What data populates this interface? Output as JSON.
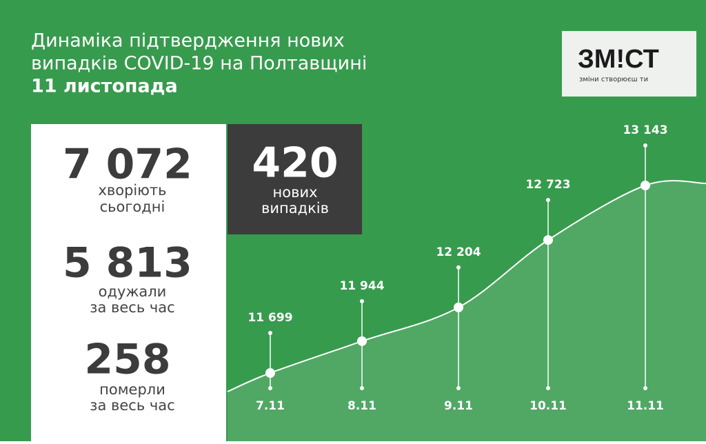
{
  "header": {
    "title_line1": "Динаміка підтвердження нових",
    "title_line2": "випадків COVID-19 на Полтавщині",
    "date": "11 листопада"
  },
  "logo": {
    "name": "ЗМ!СТ",
    "tagline": "зміни створюєш ти"
  },
  "stats": [
    {
      "number": "7 072",
      "label_line1": "хворіють",
      "label_line2": "сьогодні"
    },
    {
      "number": "5 813",
      "label_line1": "одужали",
      "label_line2": "за весь час"
    },
    {
      "number": "258",
      "label_line1": "померли",
      "label_line2": "за весь час"
    }
  ],
  "new_cases": {
    "number": "420",
    "label_line1": "нових",
    "label_line2": "випадків"
  },
  "chart_data": {
    "type": "line",
    "categories": [
      "7.11",
      "8.11",
      "9.11",
      "10.11",
      "11.11"
    ],
    "values": [
      11699,
      11944,
      12204,
      12723,
      13143
    ],
    "value_labels": [
      "11 699",
      "11 944",
      "12 204",
      "12 723",
      "13 143"
    ],
    "color": "#ffffff"
  }
}
